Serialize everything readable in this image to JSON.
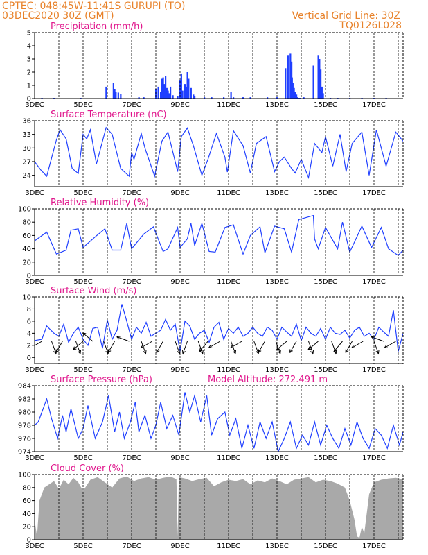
{
  "header": {
    "station": "CPTEC:   048:45W-11:41S   GURUPI (TO)",
    "run": "03DEC2020 30Z (GMT)",
    "grid_note": "Vertical Grid Line: 30Z",
    "code": "TQ0126L028",
    "model_altitude": "Model Altitude: 272.491 m"
  },
  "colors": {
    "header": "#e8822a",
    "title": "#e0168c",
    "line": "#1f3fff",
    "bar": "#1f3fff",
    "cloud": "#a9a9a9",
    "arrow": "#000000"
  },
  "chart_data": [
    {
      "type": "bar",
      "title": "Precipitation (mm/h)",
      "x_range": [
        3,
        18.2
      ],
      "x_ticks": [
        "3DEC",
        "5DEC",
        "7DEC",
        "9DEC",
        "11DEC",
        "13DEC",
        "15DEC",
        "17DEC"
      ],
      "x_tick_values": [
        3,
        5,
        7,
        9,
        11,
        13,
        15,
        17
      ],
      "ylim": [
        0,
        5
      ],
      "y_ticks": [
        "0",
        "1",
        "2",
        "3",
        "4",
        "5"
      ],
      "series": [
        {
          "x": [
            3.3,
            3.8,
            4.9,
            5.95,
            6.25,
            6.3,
            6.35,
            6.45,
            6.55,
            7.3,
            7.5,
            8.0,
            8.1,
            8.2,
            8.25,
            8.3,
            8.35,
            8.4,
            8.45,
            8.5,
            8.55,
            8.6,
            8.7,
            8.9,
            9.0,
            9.05,
            9.1,
            9.2,
            9.25,
            9.3,
            9.35,
            9.45,
            9.55,
            9.6,
            10.0,
            10.3,
            10.8,
            11.1,
            11.2,
            11.6,
            11.9,
            12.6,
            13.0,
            13.35,
            13.45,
            13.55,
            13.6,
            13.62,
            13.65,
            13.7,
            13.75,
            13.8,
            13.85,
            13.9,
            13.95,
            14.1,
            14.5,
            14.7,
            14.75,
            14.8,
            14.85,
            14.9,
            15.2,
            15.5,
            16.0,
            16.5,
            17.0,
            17.5
          ],
          "values": [
            0.05,
            0.05,
            0.05,
            0.9,
            1.2,
            0.7,
            0.5,
            0.45,
            0.35,
            0.1,
            0.1,
            0.7,
            0.9,
            0.5,
            1.5,
            1.6,
            1.1,
            1.7,
            0.8,
            0.6,
            0.4,
            0.9,
            0.25,
            0.2,
            1.4,
            1.9,
            0.6,
            1.1,
            0.9,
            2.0,
            1.5,
            0.8,
            0.3,
            0.2,
            0.1,
            0.1,
            0.1,
            0.5,
            0.1,
            0.1,
            0.1,
            0.1,
            0.1,
            2.3,
            3.3,
            3.4,
            2.8,
            1.6,
            1.2,
            0.8,
            0.5,
            0.3,
            0.1,
            0.05,
            0.05,
            0.1,
            2.5,
            3.3,
            3.0,
            2.2,
            0.9,
            0.4,
            0.05,
            0.05,
            0.05,
            0.05,
            0.05,
            0.05
          ]
        }
      ]
    },
    {
      "type": "line",
      "title": "Surface Temperature (nC)",
      "x_range": [
        3,
        18.2
      ],
      "x_ticks": [
        "3DEC",
        "5DEC",
        "7DEC",
        "9DEC",
        "11DEC",
        "13DEC",
        "15DEC",
        "17DEC"
      ],
      "x_tick_values": [
        3,
        5,
        7,
        9,
        11,
        13,
        15,
        17
      ],
      "ylim": [
        21.5,
        36
      ],
      "y_ticks": [
        "24",
        "27",
        "30",
        "33",
        "36"
      ],
      "y_tick_values": [
        24,
        27,
        30,
        33,
        36
      ],
      "series": [
        {
          "x": [
            3.0,
            3.25,
            3.5,
            3.9,
            4.05,
            4.3,
            4.55,
            4.8,
            5.0,
            5.15,
            5.3,
            5.55,
            5.95,
            6.2,
            6.55,
            6.9,
            7.0,
            7.1,
            7.4,
            7.55,
            7.95,
            8.25,
            8.5,
            8.9,
            9.05,
            9.3,
            9.55,
            9.9,
            10.15,
            10.5,
            10.85,
            10.95,
            11.2,
            11.6,
            11.9,
            12.15,
            12.55,
            12.9,
            13.1,
            13.3,
            13.6,
            13.75,
            14.0,
            14.3,
            14.55,
            14.7,
            14.85,
            15.0,
            15.3,
            15.6,
            15.85,
            16.1,
            16.5,
            16.8,
            17.1,
            17.5,
            17.9,
            18.2
          ],
          "values": [
            27.0,
            25.2,
            23.8,
            31.8,
            34.0,
            32.0,
            25.5,
            24.4,
            33.0,
            32.0,
            34.0,
            26.5,
            34.5,
            33.0,
            25.5,
            23.8,
            29.0,
            27.5,
            33.2,
            30.0,
            23.8,
            31.5,
            33.5,
            24.8,
            32.5,
            34.4,
            30.5,
            24.0,
            27.5,
            33.2,
            28.0,
            24.7,
            33.8,
            30.5,
            24.5,
            31.0,
            32.5,
            24.8,
            27.0,
            28.0,
            25.5,
            24.5,
            27.5,
            23.5,
            31.0,
            30.0,
            29.0,
            32.5,
            26.0,
            33.0,
            24.8,
            31.0,
            33.5,
            24.0,
            34.0,
            26.0,
            33.5,
            31.5
          ]
        }
      ]
    },
    {
      "type": "line",
      "title": "Relative Humidity (%)",
      "x_range": [
        3,
        18.2
      ],
      "x_ticks": [
        "3DEC",
        "5DEC",
        "7DEC",
        "9DEC",
        "11DEC",
        "13DEC",
        "15DEC",
        "17DEC"
      ],
      "x_tick_values": [
        3,
        5,
        7,
        9,
        11,
        13,
        15,
        17
      ],
      "ylim": [
        0,
        100
      ],
      "y_ticks": [
        "0",
        "20",
        "40",
        "60",
        "80",
        "100"
      ],
      "y_tick_values": [
        0,
        20,
        40,
        60,
        80,
        100
      ],
      "series": [
        {
          "x": [
            3.0,
            3.5,
            3.9,
            4.3,
            4.5,
            4.8,
            5.0,
            5.5,
            5.9,
            6.2,
            6.55,
            6.8,
            7.0,
            7.5,
            7.9,
            8.3,
            8.5,
            8.9,
            9.0,
            9.3,
            9.45,
            9.6,
            9.9,
            10.2,
            10.45,
            10.85,
            11.2,
            11.6,
            11.9,
            12.3,
            12.5,
            12.9,
            13.3,
            13.6,
            13.9,
            14.0,
            14.5,
            14.55,
            14.7,
            15.0,
            15.5,
            15.7,
            16.0,
            16.5,
            16.9,
            17.3,
            17.6,
            18.0,
            18.2
          ],
          "values": [
            52,
            65,
            32,
            38,
            68,
            70,
            42,
            58,
            70,
            38,
            38,
            78,
            40,
            62,
            73,
            36,
            40,
            72,
            42,
            55,
            78,
            45,
            78,
            36,
            35,
            72,
            76,
            32,
            60,
            73,
            34,
            74,
            70,
            35,
            84,
            85,
            90,
            55,
            40,
            72,
            40,
            80,
            35,
            74,
            42,
            72,
            40,
            30,
            38
          ]
        }
      ]
    },
    {
      "type": "line",
      "title": "Surface Wind (m/s)",
      "x_range": [
        3,
        18.2
      ],
      "x_ticks": [
        "3DEC",
        "5DEC",
        "7DEC",
        "9DEC",
        "11DEC",
        "13DEC",
        "15DEC",
        "17DEC"
      ],
      "x_tick_values": [
        3,
        5,
        7,
        9,
        11,
        13,
        15,
        17
      ],
      "ylim": [
        -1,
        10
      ],
      "y_ticks": [
        "0",
        "2",
        "4",
        "6",
        "8",
        "10"
      ],
      "y_tick_values": [
        0,
        2,
        4,
        6,
        8,
        10
      ],
      "series": [
        {
          "x": [
            3.0,
            3.3,
            3.5,
            3.8,
            4.0,
            4.2,
            4.4,
            4.6,
            4.8,
            5.0,
            5.2,
            5.4,
            5.6,
            5.8,
            6.0,
            6.2,
            6.4,
            6.6,
            6.8,
            7.0,
            7.2,
            7.4,
            7.6,
            7.8,
            8.0,
            8.2,
            8.4,
            8.6,
            8.8,
            9.0,
            9.2,
            9.4,
            9.6,
            9.8,
            10.0,
            10.2,
            10.4,
            10.6,
            10.8,
            11.0,
            11.2,
            11.4,
            11.6,
            11.8,
            12.0,
            12.2,
            12.4,
            12.6,
            12.8,
            13.0,
            13.2,
            13.4,
            13.6,
            13.8,
            14.0,
            14.2,
            14.4,
            14.6,
            14.8,
            15.0,
            15.2,
            15.4,
            15.6,
            15.8,
            16.0,
            16.2,
            16.4,
            16.6,
            16.8,
            17.0,
            17.2,
            17.4,
            17.6,
            17.8,
            18.0,
            18.2
          ],
          "values": [
            2.8,
            3.0,
            5.2,
            4.0,
            3.5,
            5.5,
            2.5,
            4.0,
            5.0,
            3.0,
            2.0,
            4.8,
            5.0,
            1.5,
            6.2,
            3.0,
            4.5,
            8.8,
            6.0,
            3.0,
            5.0,
            4.0,
            5.8,
            3.5,
            4.0,
            4.5,
            6.3,
            4.5,
            5.5,
            1.0,
            6.0,
            5.2,
            3.0,
            4.0,
            4.5,
            2.5,
            5.0,
            5.8,
            3.0,
            4.8,
            4.0,
            5.0,
            3.5,
            4.0,
            5.0,
            4.0,
            3.5,
            5.0,
            4.5,
            3.0,
            5.0,
            4.2,
            3.5,
            5.5,
            2.8,
            5.0,
            4.0,
            3.5,
            4.8,
            3.0,
            5.0,
            4.0,
            3.8,
            4.5,
            3.2,
            4.5,
            5.0,
            3.5,
            4.0,
            3.0,
            5.0,
            4.2,
            3.5,
            7.8,
            1.0,
            4.0
          ]
        }
      ],
      "vectors": [
        [
          3.3,
          300
        ],
        [
          3.7,
          20
        ],
        [
          4.15,
          330
        ],
        [
          4.7,
          20
        ],
        [
          5.0,
          310
        ],
        [
          5.4,
          230
        ],
        [
          5.85,
          20
        ],
        [
          6.3,
          330
        ],
        [
          6.9,
          250
        ],
        [
          7.4,
          20
        ],
        [
          7.85,
          300
        ],
        [
          8.3,
          330
        ],
        [
          8.8,
          20
        ],
        [
          9.3,
          340
        ],
        [
          9.75,
          20
        ],
        [
          10.15,
          320
        ],
        [
          10.65,
          300
        ],
        [
          11.1,
          20
        ],
        [
          11.55,
          300
        ],
        [
          12.05,
          20
        ],
        [
          12.5,
          330
        ],
        [
          12.95,
          20
        ],
        [
          13.4,
          310
        ],
        [
          13.8,
          330
        ],
        [
          14.3,
          20
        ],
        [
          14.7,
          310
        ],
        [
          15.25,
          20
        ],
        [
          15.7,
          320
        ],
        [
          16.1,
          330
        ],
        [
          16.55,
          300
        ],
        [
          17.0,
          20
        ],
        [
          17.4,
          250
        ],
        [
          17.9,
          300
        ]
      ]
    },
    {
      "type": "line",
      "title": "Surface Pressure (hPa)",
      "x_range": [
        3,
        18.2
      ],
      "x_ticks": [
        "3DEC",
        "5DEC",
        "7DEC",
        "9DEC",
        "11DEC",
        "13DEC",
        "15DEC",
        "17DEC"
      ],
      "x_tick_values": [
        3,
        5,
        7,
        9,
        11,
        13,
        15,
        17
      ],
      "ylim": [
        974,
        984
      ],
      "y_ticks": [
        "974",
        "976",
        "978",
        "980",
        "982",
        "984"
      ],
      "y_tick_values": [
        974,
        976,
        978,
        980,
        982,
        984
      ],
      "series": [
        {
          "x": [
            3.0,
            3.15,
            3.5,
            3.7,
            3.95,
            4.15,
            4.3,
            4.5,
            4.8,
            5.0,
            5.2,
            5.5,
            5.8,
            6.05,
            6.3,
            6.5,
            6.7,
            6.95,
            7.15,
            7.3,
            7.55,
            7.8,
            8.0,
            8.2,
            8.45,
            8.7,
            8.95,
            9.2,
            9.4,
            9.6,
            9.85,
            10.1,
            10.3,
            10.55,
            10.85,
            11.05,
            11.3,
            11.55,
            11.8,
            12.05,
            12.3,
            12.55,
            12.8,
            13.05,
            13.3,
            13.55,
            13.8,
            14.05,
            14.3,
            14.55,
            14.8,
            15.05,
            15.3,
            15.55,
            15.8,
            16.05,
            16.3,
            16.55,
            16.8,
            17.05,
            17.3,
            17.55,
            17.8,
            18.05,
            18.2
          ],
          "values": [
            978.0,
            978.5,
            982.0,
            979.0,
            976.0,
            979.5,
            977.0,
            980.5,
            976.0,
            977.5,
            981.0,
            976.0,
            978.5,
            982.5,
            977.0,
            980.0,
            976.0,
            978.5,
            981.5,
            977.0,
            979.5,
            976.0,
            978.0,
            981.5,
            977.5,
            979.5,
            976.5,
            983.0,
            980.0,
            982.5,
            978.5,
            982.5,
            976.5,
            979.0,
            980.0,
            976.5,
            979.0,
            974.5,
            978.0,
            974.5,
            978.5,
            976.0,
            978.5,
            974.0,
            976.0,
            978.5,
            974.5,
            976.5,
            975.0,
            978.5,
            975.0,
            978.0,
            976.0,
            974.5,
            977.5,
            975.0,
            978.5,
            976.0,
            974.5,
            977.5,
            976.5,
            974.5,
            978.0,
            975.0,
            977.0
          ]
        }
      ]
    },
    {
      "type": "area",
      "title": "Cloud Cover (%)",
      "x_range": [
        3,
        18.2
      ],
      "x_ticks": [
        "3DEC",
        "5DEC",
        "7DEC",
        "9DEC",
        "11DEC",
        "13DEC",
        "15DEC",
        "17DEC"
      ],
      "x_tick_values": [
        3,
        5,
        7,
        9,
        11,
        13,
        15,
        17
      ],
      "ylim": [
        0,
        100
      ],
      "y_ticks": [
        "0",
        "20",
        "40",
        "60",
        "80",
        "100"
      ],
      "y_tick_values": [
        0,
        20,
        40,
        60,
        80,
        100
      ],
      "series": [
        {
          "x": [
            3.0,
            3.1,
            3.2,
            3.4,
            3.6,
            3.8,
            4.0,
            4.2,
            4.4,
            4.6,
            4.8,
            5.0,
            5.3,
            5.6,
            5.9,
            6.2,
            6.5,
            6.8,
            7.1,
            7.4,
            7.7,
            8.0,
            8.3,
            8.6,
            8.85,
            8.9,
            8.95,
            9.2,
            9.5,
            9.8,
            10.1,
            10.4,
            10.7,
            11.0,
            11.3,
            11.6,
            11.9,
            12.2,
            12.5,
            12.8,
            13.1,
            13.4,
            13.7,
            14.0,
            14.3,
            14.6,
            14.9,
            15.2,
            15.5,
            15.8,
            16.0,
            16.2,
            16.3,
            16.4,
            16.5,
            16.6,
            16.8,
            17.0,
            17.3,
            17.6,
            17.9,
            18.2
          ],
          "values": [
            30,
            5,
            60,
            80,
            85,
            90,
            78,
            92,
            85,
            95,
            88,
            75,
            92,
            96,
            88,
            80,
            94,
            97,
            90,
            94,
            96,
            92,
            95,
            97,
            93,
            5,
            96,
            94,
            90,
            93,
            95,
            82,
            88,
            92,
            90,
            93,
            85,
            91,
            88,
            94,
            90,
            85,
            92,
            94,
            96,
            88,
            92,
            90,
            86,
            80,
            60,
            30,
            5,
            3,
            20,
            10,
            70,
            88,
            92,
            94,
            95,
            93
          ]
        }
      ]
    }
  ]
}
